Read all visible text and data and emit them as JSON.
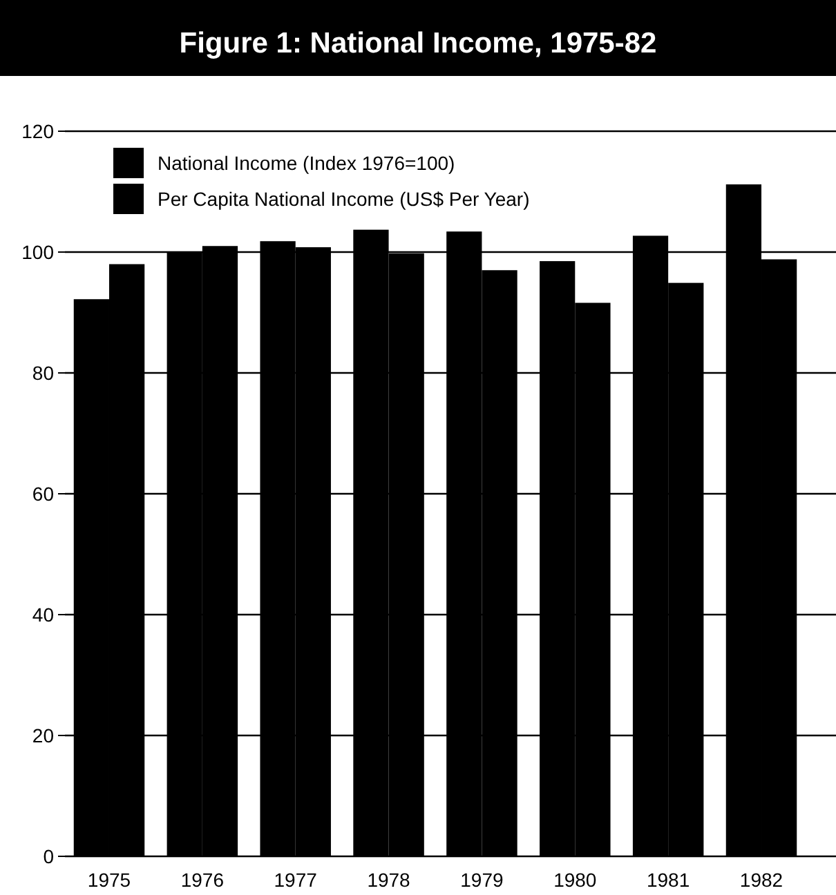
{
  "chart_data": {
    "type": "bar",
    "title": "Figure 1: National Income, 1975-82",
    "categories": [
      "1975",
      "1976",
      "1977",
      "1978",
      "1979",
      "1980",
      "1981",
      "1982"
    ],
    "series": [
      {
        "name": "National Income (Index 1976=100)",
        "color": "#000000",
        "values": [
          92.2,
          100,
          101.8,
          103.7,
          103.4,
          98.5,
          102.7,
          111.2
        ]
      },
      {
        "name": "Per Capita National Income (US$ Per Year)",
        "color": "#000000",
        "values": [
          98,
          101,
          100.8,
          99.8,
          97,
          91.6,
          94.9,
          98.8
        ]
      }
    ],
    "ylim": [
      0,
      120
    ],
    "yticks": [
      0,
      20,
      40,
      60,
      80,
      100,
      120
    ],
    "grid": "y",
    "legend": "top left"
  }
}
